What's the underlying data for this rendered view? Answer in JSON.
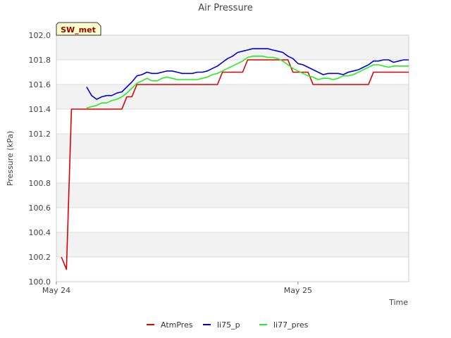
{
  "chart_data": {
    "type": "line",
    "title": "Air Pressure",
    "xlabel": "Time",
    "ylabel": "Pressure (kPa)",
    "ylim": [
      100.0,
      102.0
    ],
    "xlim": [
      0,
      70
    ],
    "yticks": [
      "100.0",
      "100.2",
      "100.4",
      "100.6",
      "100.8",
      "101.0",
      "101.2",
      "101.4",
      "101.6",
      "101.8",
      "102.0"
    ],
    "xticks": [
      {
        "label": "May 24",
        "x": 0
      },
      {
        "label": "May 25",
        "x": 48
      }
    ],
    "site_label": "SW_met",
    "legend_position": "bottom-center",
    "colors": {
      "AtmPres": "#dd0000",
      "li75_p": "#0000dd",
      "li77_pres": "#22ee22",
      "band": "#f2f2f2",
      "grid": "#dddddd",
      "site_bg": "#ffffcc",
      "site_text": "#990000"
    },
    "series": [
      {
        "name": "AtmPres",
        "x": [
          1,
          2,
          3,
          4,
          5,
          6,
          7,
          8,
          9,
          10,
          11,
          12,
          13,
          14,
          15,
          16,
          17,
          18,
          19,
          20,
          21,
          22,
          23,
          24,
          25,
          26,
          27,
          28,
          29,
          30,
          31,
          32,
          33,
          34,
          35,
          36,
          37,
          38,
          39,
          40,
          41,
          42,
          43,
          44,
          45,
          46,
          47,
          48,
          49,
          50,
          51,
          52,
          53,
          54,
          55,
          56,
          57,
          58,
          59,
          60,
          61,
          62,
          63,
          64,
          65,
          66,
          67,
          68,
          69,
          70
        ],
        "values": [
          100.2,
          100.1,
          101.4,
          101.4,
          101.4,
          101.4,
          101.4,
          101.4,
          101.4,
          101.4,
          101.4,
          101.4,
          101.4,
          101.5,
          101.5,
          101.6,
          101.6,
          101.6,
          101.6,
          101.6,
          101.6,
          101.6,
          101.6,
          101.6,
          101.6,
          101.6,
          101.6,
          101.6,
          101.6,
          101.6,
          101.6,
          101.6,
          101.7,
          101.7,
          101.7,
          101.7,
          101.7,
          101.8,
          101.8,
          101.8,
          101.8,
          101.8,
          101.8,
          101.8,
          101.8,
          101.8,
          101.7,
          101.7,
          101.7,
          101.7,
          101.6,
          101.6,
          101.6,
          101.6,
          101.6,
          101.6,
          101.6,
          101.6,
          101.6,
          101.6,
          101.6,
          101.6,
          101.7,
          101.7,
          101.7,
          101.7,
          101.7,
          101.7,
          101.7,
          101.7
        ]
      },
      {
        "name": "li75_p",
        "x": [
          6,
          7,
          8,
          9,
          10,
          11,
          12,
          13,
          14,
          15,
          16,
          17,
          18,
          19,
          20,
          21,
          22,
          23,
          24,
          25,
          26,
          27,
          28,
          29,
          30,
          31,
          32,
          33,
          34,
          35,
          36,
          37,
          38,
          39,
          40,
          41,
          42,
          43,
          44,
          45,
          46,
          47,
          48,
          49,
          50,
          51,
          52,
          53,
          54,
          55,
          56,
          57,
          58,
          59,
          60,
          61,
          62,
          63,
          64,
          65,
          66,
          67,
          68,
          69,
          70
        ],
        "values": [
          101.58,
          101.51,
          101.48,
          101.5,
          101.51,
          101.51,
          101.53,
          101.54,
          101.58,
          101.62,
          101.67,
          101.68,
          101.7,
          101.69,
          101.69,
          101.7,
          101.71,
          101.71,
          101.7,
          101.69,
          101.69,
          101.69,
          101.7,
          101.7,
          101.71,
          101.73,
          101.75,
          101.78,
          101.81,
          101.83,
          101.86,
          101.87,
          101.88,
          101.89,
          101.89,
          101.89,
          101.89,
          101.88,
          101.87,
          101.86,
          101.83,
          101.81,
          101.77,
          101.76,
          101.74,
          101.72,
          101.7,
          101.68,
          101.69,
          101.69,
          101.69,
          101.68,
          101.7,
          101.71,
          101.72,
          101.74,
          101.76,
          101.79,
          101.79,
          101.8,
          101.8,
          101.78,
          101.79,
          101.8,
          101.8
        ]
      },
      {
        "name": "li77_pres",
        "x": [
          6,
          7,
          8,
          9,
          10,
          11,
          12,
          13,
          14,
          15,
          16,
          17,
          18,
          19,
          20,
          21,
          22,
          23,
          24,
          25,
          26,
          27,
          28,
          29,
          30,
          31,
          32,
          33,
          34,
          35,
          36,
          37,
          38,
          39,
          40,
          41,
          42,
          43,
          44,
          45,
          46,
          47,
          48,
          49,
          50,
          51,
          52,
          53,
          54,
          55,
          56,
          57,
          58,
          59,
          60,
          61,
          62,
          63,
          64,
          65,
          66,
          67,
          68,
          69,
          70
        ],
        "values": [
          101.41,
          101.42,
          101.43,
          101.45,
          101.45,
          101.47,
          101.48,
          101.5,
          101.53,
          101.57,
          101.61,
          101.63,
          101.65,
          101.63,
          101.63,
          101.65,
          101.66,
          101.65,
          101.64,
          101.64,
          101.64,
          101.64,
          101.64,
          101.65,
          101.66,
          101.68,
          101.69,
          101.71,
          101.73,
          101.75,
          101.77,
          101.79,
          101.82,
          101.83,
          101.83,
          101.83,
          101.82,
          101.82,
          101.81,
          101.79,
          101.76,
          101.73,
          101.71,
          101.69,
          101.67,
          101.66,
          101.64,
          101.65,
          101.65,
          101.64,
          101.65,
          101.67,
          101.67,
          101.68,
          101.7,
          101.72,
          101.74,
          101.76,
          101.76,
          101.75,
          101.74,
          101.75,
          101.75,
          101.75,
          101.75
        ]
      }
    ]
  }
}
